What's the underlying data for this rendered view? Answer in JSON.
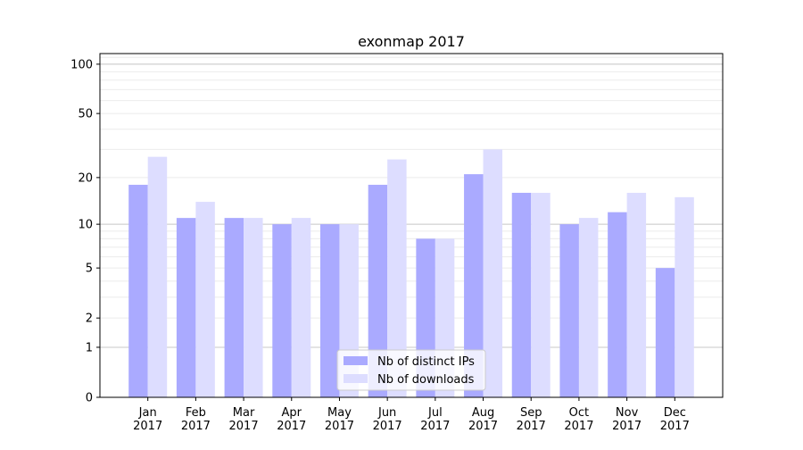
{
  "chart_data": {
    "type": "bar",
    "title": "exonmap 2017",
    "xlabel": "",
    "ylabel": "",
    "yscale": "log10(1+y)",
    "ylim": [
      0,
      116
    ],
    "yticks": [
      0,
      1,
      2,
      5,
      10,
      20,
      50,
      100
    ],
    "categories": [
      "Jan\n2017",
      "Feb\n2017",
      "Mar\n2017",
      "Apr\n2017",
      "May\n2017",
      "Jun\n2017",
      "Jul\n2017",
      "Aug\n2017",
      "Sep\n2017",
      "Oct\n2017",
      "Nov\n2017",
      "Dec\n2017"
    ],
    "series": [
      {
        "name": "Nb of distinct IPs",
        "color": "#aaaaff",
        "values": [
          18,
          11,
          11,
          10,
          10,
          18,
          8,
          21,
          16,
          10,
          12,
          5
        ]
      },
      {
        "name": "Nb of downloads",
        "color": "#ddddff",
        "values": [
          27,
          14,
          11,
          11,
          10,
          26,
          8,
          30,
          16,
          11,
          16,
          15
        ]
      }
    ],
    "grid": true,
    "legend": "bottom-center"
  }
}
